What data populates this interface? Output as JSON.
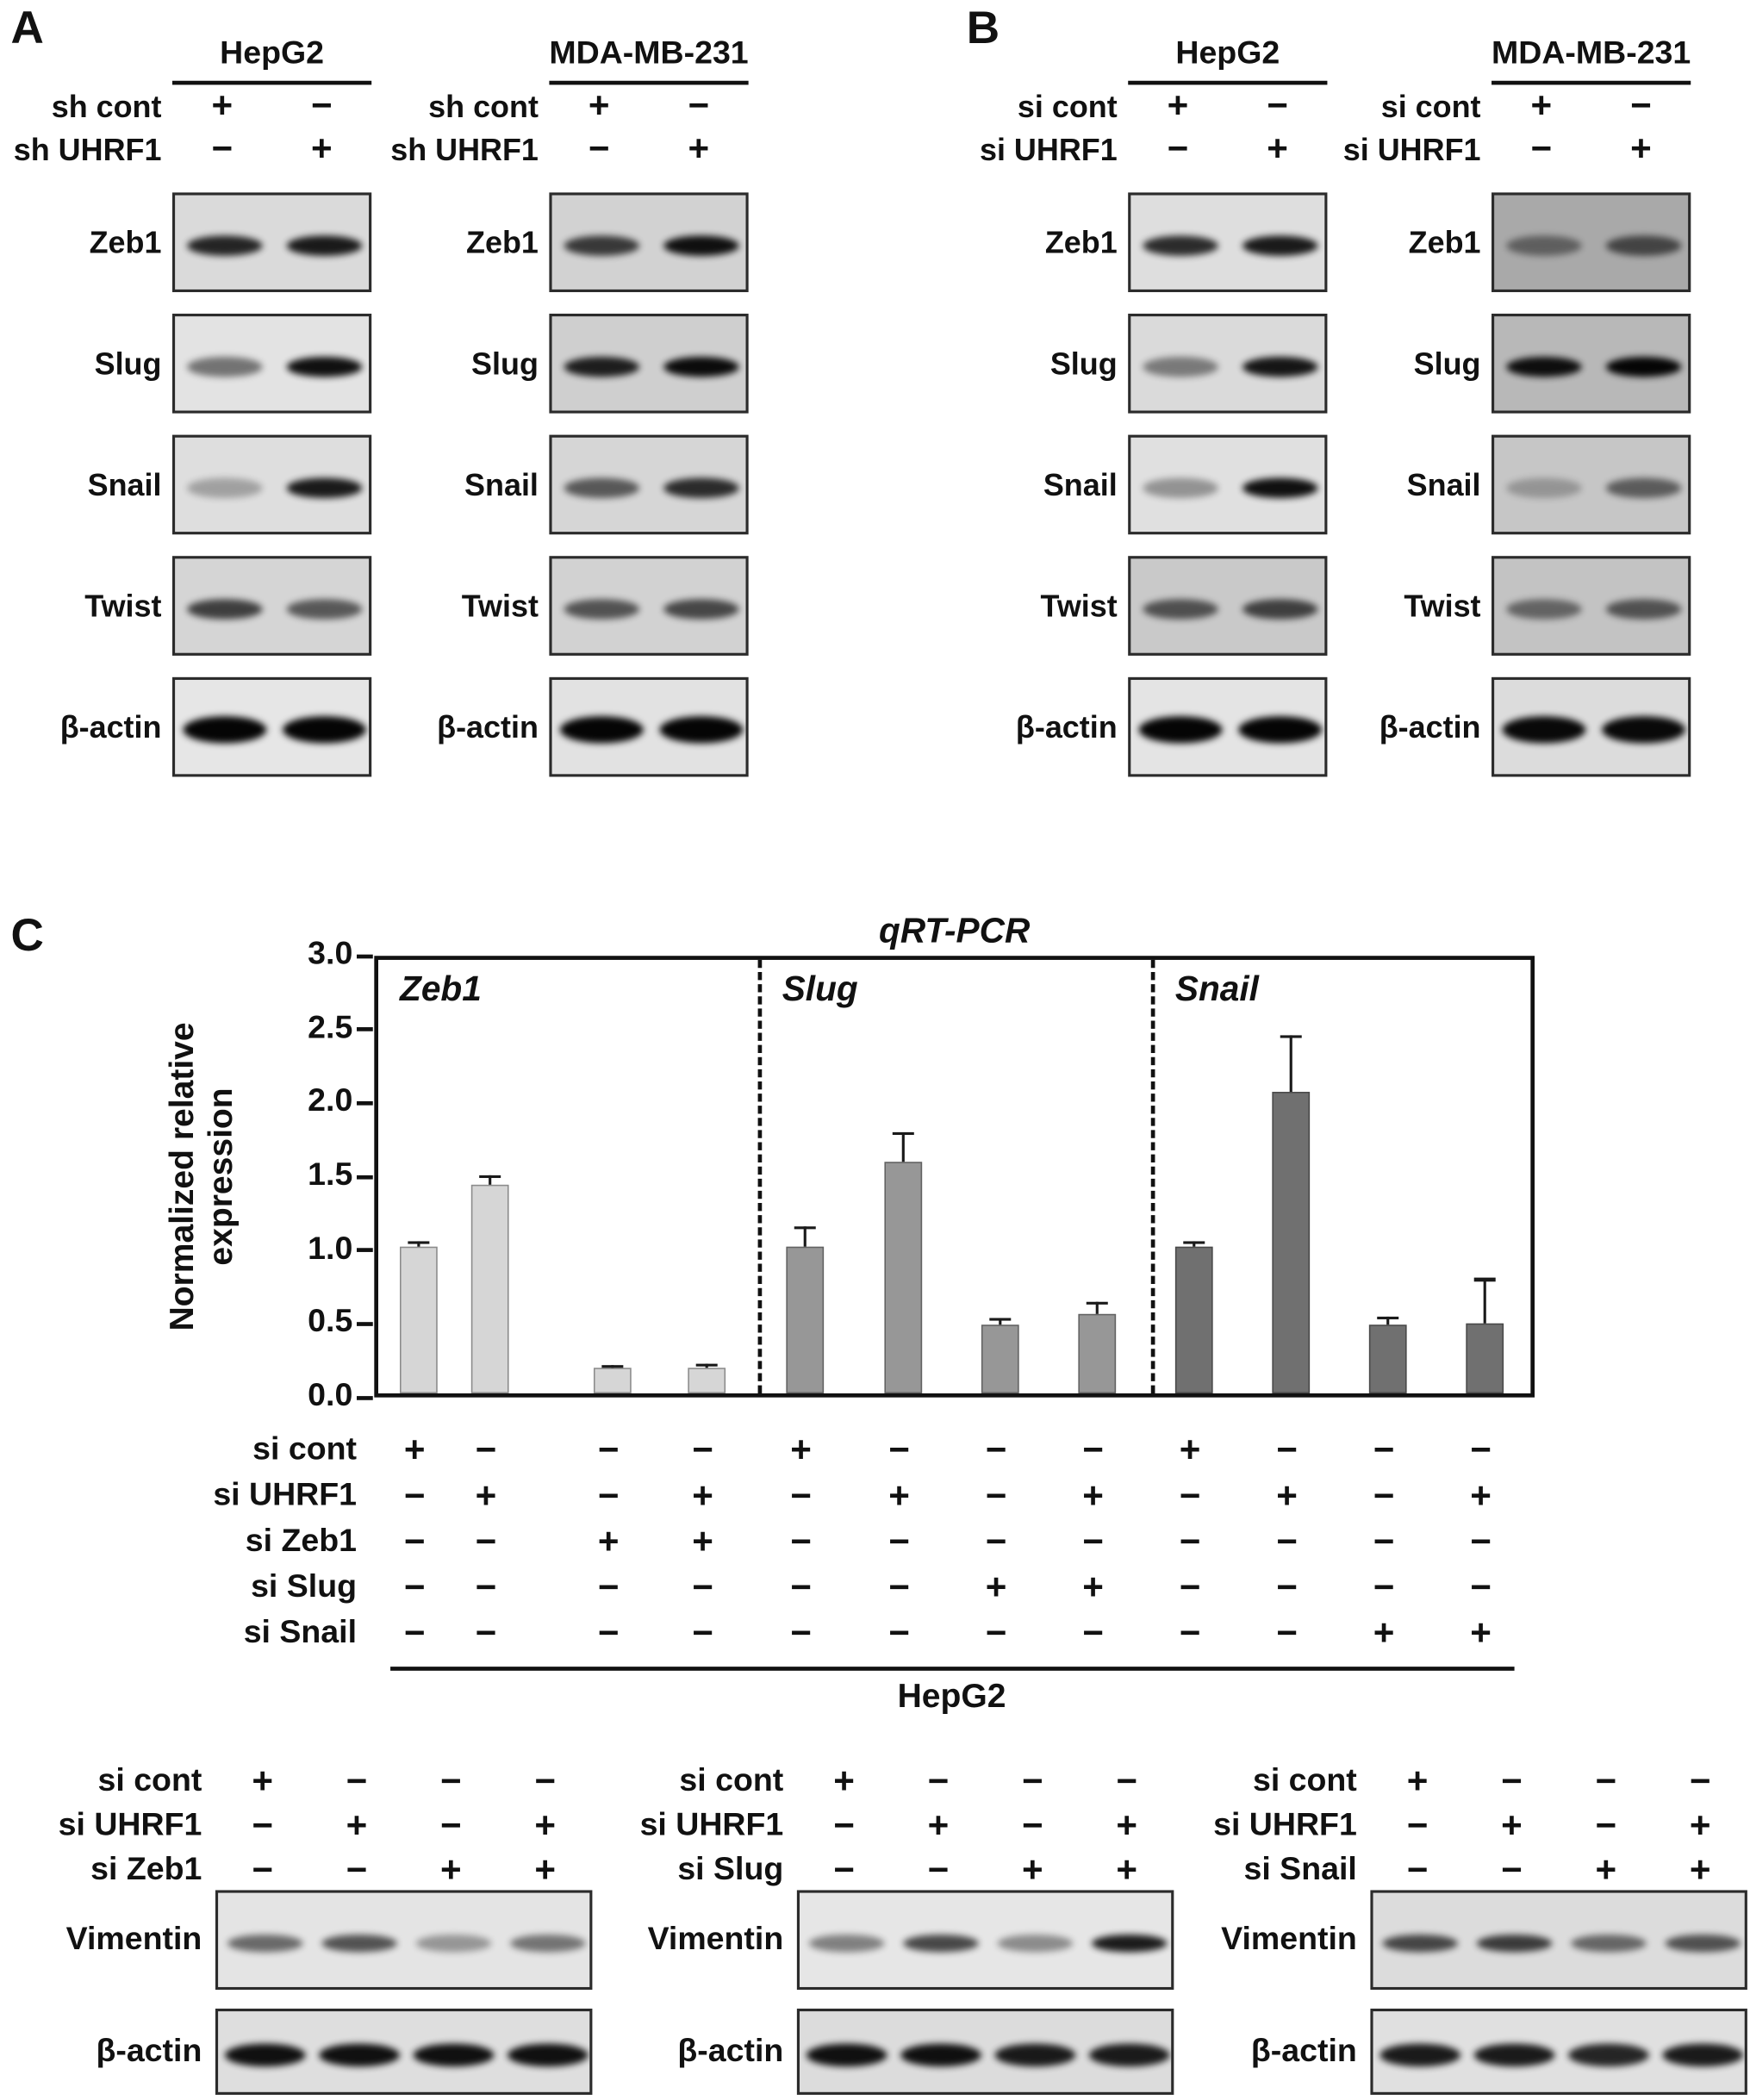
{
  "figure": {
    "panels": {
      "a_letter": "A",
      "b_letter": "B",
      "c_letter": "C"
    }
  },
  "western_panels": [
    {
      "id": "A",
      "condition_labels": [
        "sh cont",
        "sh UHRF1"
      ],
      "condition_signs": [
        [
          "+",
          "−"
        ],
        [
          "−",
          "+"
        ]
      ],
      "columns": [
        {
          "cell_line": "HepG2",
          "blots": [
            {
              "protein": "Zeb1",
              "bg": "#dadada",
              "bands": [
                0.85,
                0.9
              ]
            },
            {
              "protein": "Slug",
              "bg": "#e3e3e3",
              "bands": [
                0.5,
                0.95
              ]
            },
            {
              "protein": "Snail",
              "bg": "#dedede",
              "bands": [
                0.28,
                0.9
              ]
            },
            {
              "protein": "Twist",
              "bg": "#d5d5d5",
              "bands": [
                0.72,
                0.6
              ]
            },
            {
              "protein": "β-actin",
              "bg": "#e6e6e6",
              "bands": [
                1,
                1
              ]
            }
          ]
        },
        {
          "cell_line": "MDA-MB-231",
          "blots": [
            {
              "protein": "Zeb1",
              "bg": "#d2d2d2",
              "bands": [
                0.75,
                0.95
              ]
            },
            {
              "protein": "Slug",
              "bg": "#cfcfcf",
              "bands": [
                0.88,
                0.97
              ]
            },
            {
              "protein": "Snail",
              "bg": "#d6d6d6",
              "bands": [
                0.6,
                0.82
              ]
            },
            {
              "protein": "Twist",
              "bg": "#d2d2d2",
              "bands": [
                0.62,
                0.68
              ]
            },
            {
              "protein": "β-actin",
              "bg": "#e2e2e2",
              "bands": [
                1,
                1
              ]
            }
          ]
        }
      ]
    },
    {
      "id": "B",
      "condition_labels": [
        "si cont",
        "si UHRF1"
      ],
      "condition_signs": [
        [
          "+",
          "−"
        ],
        [
          "−",
          "+"
        ]
      ],
      "columns": [
        {
          "cell_line": "HepG2",
          "blots": [
            {
              "protein": "Zeb1",
              "bg": "#dedede",
              "bands": [
                0.82,
                0.9
              ]
            },
            {
              "protein": "Slug",
              "bg": "#dadada",
              "bands": [
                0.45,
                0.92
              ]
            },
            {
              "protein": "Snail",
              "bg": "#e0e0e0",
              "bands": [
                0.35,
                0.95
              ]
            },
            {
              "protein": "Twist",
              "bg": "#c9c9c9",
              "bands": [
                0.62,
                0.7
              ]
            },
            {
              "protein": "β-actin",
              "bg": "#e4e4e4",
              "bands": [
                1,
                1
              ]
            }
          ]
        },
        {
          "cell_line": "MDA-MB-231",
          "blots": [
            {
              "protein": "Zeb1",
              "bg": "#a9a9a9",
              "bands": [
                0.45,
                0.62
              ]
            },
            {
              "protein": "Slug",
              "bg": "#b8b8b8",
              "bands": [
                0.95,
                1
              ]
            },
            {
              "protein": "Snail",
              "bg": "#c6c6c6",
              "bands": [
                0.25,
                0.55
              ]
            },
            {
              "protein": "Twist",
              "bg": "#c3c3c3",
              "bands": [
                0.5,
                0.6
              ]
            },
            {
              "protein": "β-actin",
              "bg": "#dcdcdc",
              "bands": [
                0.98,
                0.98
              ]
            }
          ]
        }
      ]
    }
  ],
  "chart_data": {
    "type": "bar",
    "title": "qRT-PCR",
    "ylabel": "Normalized relative expression",
    "ylim": [
      0,
      3.0
    ],
    "yticks": [
      0.0,
      0.5,
      1.0,
      1.5,
      2.0,
      2.5,
      3.0
    ],
    "grid": false,
    "groups": [
      {
        "name": "Zeb1",
        "color": "#d6d6d6",
        "values": [
          1.0,
          1.42,
          0.17,
          0.17
        ],
        "errors": [
          0.03,
          0.06,
          0.02,
          0.03
        ]
      },
      {
        "name": "Slug",
        "color": "#979797",
        "values": [
          1.0,
          1.57,
          0.47,
          0.54
        ],
        "errors": [
          0.13,
          0.2,
          0.04,
          0.08
        ]
      },
      {
        "name": "Snail",
        "color": "#707070",
        "values": [
          1.0,
          2.05,
          0.47,
          0.48
        ],
        "errors": [
          0.03,
          0.38,
          0.05,
          0.3
        ]
      }
    ],
    "condition_matrix": {
      "rows": [
        {
          "label": "si cont",
          "signs": [
            "+",
            "−",
            "−",
            "−",
            "+",
            "−",
            "−",
            "−",
            "+",
            "−",
            "−",
            "−"
          ]
        },
        {
          "label": "si UHRF1",
          "signs": [
            "−",
            "+",
            "−",
            "+",
            "−",
            "+",
            "−",
            "+",
            "−",
            "+",
            "−",
            "+"
          ]
        },
        {
          "label": "si Zeb1",
          "signs": [
            "−",
            "−",
            "+",
            "+",
            "−",
            "−",
            "−",
            "−",
            "−",
            "−",
            "−",
            "−"
          ]
        },
        {
          "label": "si Slug",
          "signs": [
            "−",
            "−",
            "−",
            "−",
            "−",
            "−",
            "+",
            "+",
            "−",
            "−",
            "−",
            "−"
          ]
        },
        {
          "label": "si Snail",
          "signs": [
            "−",
            "−",
            "−",
            "−",
            "−",
            "−",
            "−",
            "−",
            "−",
            "−",
            "+",
            "+"
          ]
        }
      ],
      "cell_line": "HepG2"
    }
  },
  "bottom_blots": {
    "groups": [
      {
        "matrix": [
          {
            "label": "si cont",
            "signs": [
              "+",
              "−",
              "−",
              "−"
            ]
          },
          {
            "label": "si UHRF1",
            "signs": [
              "−",
              "+",
              "−",
              "+"
            ]
          },
          {
            "label": "si Zeb1",
            "signs": [
              "−",
              "−",
              "+",
              "+"
            ]
          }
        ],
        "blots": [
          {
            "protein": "Vimentin",
            "bg": "#e4e4e4",
            "bands": [
              0.55,
              0.65,
              0.35,
              0.5
            ]
          },
          {
            "protein": "β-actin",
            "bg": "#dedede",
            "bands": [
              0.95,
              0.95,
              0.95,
              0.95
            ]
          }
        ]
      },
      {
        "matrix": [
          {
            "label": "si cont",
            "signs": [
              "+",
              "−",
              "−",
              "−"
            ]
          },
          {
            "label": "si UHRF1",
            "signs": [
              "−",
              "+",
              "−",
              "+"
            ]
          },
          {
            "label": "si Slug",
            "signs": [
              "−",
              "−",
              "+",
              "+"
            ]
          }
        ],
        "blots": [
          {
            "protein": "Vimentin",
            "bg": "#e6e6e6",
            "bands": [
              0.45,
              0.7,
              0.4,
              0.9
            ]
          },
          {
            "protein": "β-actin",
            "bg": "#dcdcdc",
            "bands": [
              0.95,
              0.95,
              0.9,
              0.9
            ]
          }
        ]
      },
      {
        "matrix": [
          {
            "label": "si cont",
            "signs": [
              "+",
              "−",
              "−",
              "−"
            ]
          },
          {
            "label": "si UHRF1",
            "signs": [
              "−",
              "+",
              "−",
              "+"
            ]
          },
          {
            "label": "si Snail",
            "signs": [
              "−",
              "−",
              "+",
              "+"
            ]
          }
        ],
        "blots": [
          {
            "protein": "Vimentin",
            "bg": "#dcdcdc",
            "bands": [
              0.7,
              0.75,
              0.55,
              0.65
            ]
          },
          {
            "protein": "β-actin",
            "bg": "#e0e0e0",
            "bands": [
              0.9,
              0.9,
              0.85,
              0.9
            ]
          }
        ]
      }
    ]
  }
}
